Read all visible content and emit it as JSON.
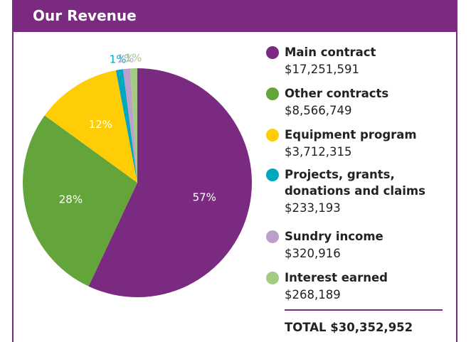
{
  "header": {
    "title": "Our Revenue"
  },
  "chart_data": {
    "type": "pie",
    "categories": [
      "Main contract",
      "Other contracts",
      "Equipment program",
      "Projects, grants, donations and claims",
      "Sundry income",
      "Interest earned"
    ],
    "values": [
      57,
      28,
      12,
      1,
      1,
      1
    ],
    "value_labels": [
      "57%",
      "28%",
      "12%",
      "1%",
      "1%",
      "1%"
    ],
    "colors": [
      "#7b2a82",
      "#63a43b",
      "#ffcd05",
      "#00a8bf",
      "#baa0cb",
      "#a3cb82"
    ],
    "amounts": [
      17251591,
      8566749,
      3712315,
      233193,
      320916,
      268189
    ],
    "amount_labels": [
      "$17,251,591",
      "$8,566,749",
      "$3,712,315",
      "$233,193",
      "$320,916",
      "$268,189"
    ],
    "total_label": "TOTAL $30,352,952"
  }
}
